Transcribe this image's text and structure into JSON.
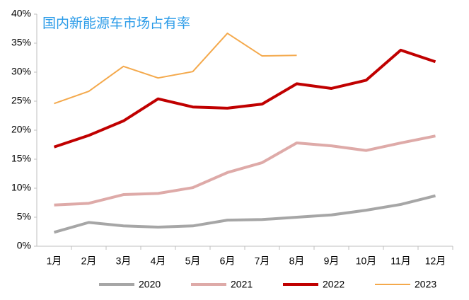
{
  "chart_data": {
    "type": "line",
    "title": "国内新能源车市场占有率",
    "categories": [
      "1月",
      "2月",
      "3月",
      "4月",
      "5月",
      "6月",
      "7月",
      "8月",
      "9月",
      "10月",
      "11月",
      "12月"
    ],
    "series": [
      {
        "name": "2020",
        "color": "#a6a6a6",
        "values": [
          2.4,
          4.1,
          3.5,
          3.3,
          3.5,
          4.5,
          4.6,
          5.0,
          5.4,
          6.2,
          7.2,
          8.7
        ]
      },
      {
        "name": "2021",
        "color": "#deaaa8",
        "values": [
          7.1,
          7.4,
          8.9,
          9.1,
          10.1,
          12.7,
          14.4,
          17.8,
          17.3,
          16.5,
          17.8,
          19.0
        ]
      },
      {
        "name": "2022",
        "color": "#c00000",
        "values": [
          17.1,
          19.1,
          21.6,
          25.4,
          24.0,
          23.8,
          24.5,
          28.0,
          27.2,
          28.6,
          33.8,
          31.8
        ]
      },
      {
        "name": "2023",
        "color": "#f4a94c",
        "values": [
          24.6,
          26.7,
          31.0,
          29.0,
          30.1,
          36.7,
          32.8,
          32.9,
          null,
          null,
          null,
          null
        ]
      }
    ],
    "ylim": [
      0,
      40
    ],
    "yticks": [
      {
        "value": 0,
        "label": "0%"
      },
      {
        "value": 5,
        "label": "5%"
      },
      {
        "value": 10,
        "label": "10%"
      },
      {
        "value": 15,
        "label": "15%"
      },
      {
        "value": 20,
        "label": "20%"
      },
      {
        "value": 25,
        "label": "25%"
      },
      {
        "value": 30,
        "label": "30%"
      },
      {
        "value": 35,
        "label": "35%"
      },
      {
        "value": 40,
        "label": "40%"
      }
    ],
    "grid": false
  }
}
